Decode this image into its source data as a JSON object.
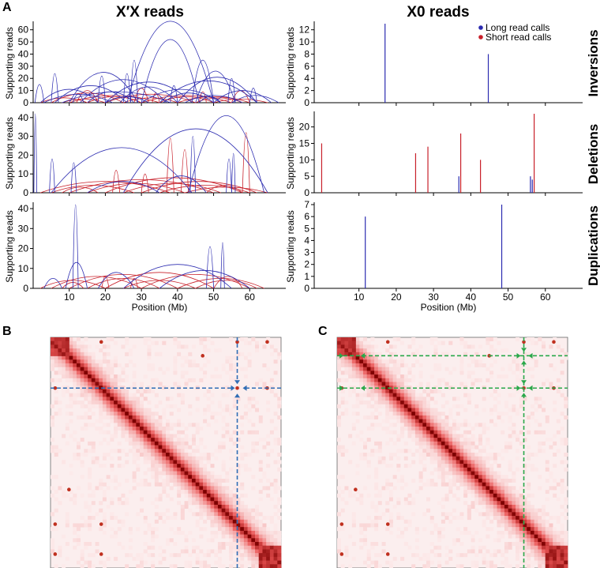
{
  "figure": {
    "panel_labels": {
      "a": "A",
      "b": "B",
      "c": "C"
    },
    "col_titles": {
      "left": "X′X reads",
      "right": "X0 reads"
    },
    "row_titles": {
      "inv": "Inversions",
      "del": "Deletions",
      "dup": "Duplications"
    },
    "ylabel": "Supporting reads",
    "xlabel": "Position (Mb)",
    "legend": [
      {
        "label": "Long read calls",
        "color": "#2b2bb0"
      },
      {
        "label": "Short read calls",
        "color": "#c8202a"
      }
    ]
  },
  "chart_data": [
    {
      "id": "xx_inv",
      "type": "arc",
      "panel": "X′X reads",
      "row": "Inversions",
      "xlim": [
        0,
        70
      ],
      "ylim": [
        0,
        65
      ],
      "yticks": [
        0,
        10,
        20,
        30,
        40,
        50,
        60
      ],
      "xticks": [
        10,
        20,
        30,
        40,
        50,
        60
      ],
      "show_xticklabels": false,
      "series": [
        {
          "name": "Long read calls",
          "arcs": [
            [
              26,
              50,
              67
            ],
            [
              30,
              46,
              52
            ],
            [
              10,
              29,
              25
            ],
            [
              44,
              50,
              35
            ],
            [
              0.5,
              3,
              15
            ],
            [
              13,
              37,
              19
            ],
            [
              35,
              62,
              18
            ],
            [
              6,
              26,
              14
            ],
            [
              20,
              44,
              17
            ],
            [
              40,
              62,
              21
            ],
            [
              45,
              56,
              26
            ],
            [
              2,
              18,
              11
            ],
            [
              24,
              40,
              13
            ],
            [
              50,
              66,
              10
            ],
            [
              15,
              28,
              9
            ],
            [
              30,
              52,
              11
            ],
            [
              8,
              38,
              9
            ],
            [
              36,
              50,
              8
            ],
            [
              55,
              68,
              6
            ],
            [
              3,
              22,
              7
            ],
            [
              20,
              32,
              5
            ],
            [
              42,
              58,
              6
            ],
            [
              11,
              14,
              7
            ],
            [
              46,
              52,
              5
            ],
            [
              25,
              27,
              24
            ],
            [
              18,
              20,
              22
            ],
            [
              5,
              7,
              24
            ],
            [
              54,
              56,
              20
            ],
            [
              60,
              62,
              12
            ],
            [
              27,
              29,
              35
            ],
            [
              38,
              40,
              14
            ]
          ]
        },
        {
          "name": "Short read calls",
          "arcs": [
            [
              5,
              25,
              8
            ],
            [
              10,
              35,
              6
            ],
            [
              20,
              45,
              7
            ],
            [
              30,
              55,
              6
            ],
            [
              40,
              60,
              5
            ],
            [
              2,
              15,
              4
            ],
            [
              15,
              30,
              5
            ],
            [
              25,
              40,
              4
            ],
            [
              35,
              50,
              5
            ],
            [
              45,
              58,
              4
            ],
            [
              8,
              20,
              3
            ],
            [
              50,
              65,
              3
            ],
            [
              28,
              32,
              12
            ],
            [
              12,
              18,
              10
            ],
            [
              55,
              60,
              10
            ],
            [
              33,
              35,
              8
            ],
            [
              46,
              48,
              9
            ]
          ]
        }
      ]
    },
    {
      "id": "xx_del",
      "type": "arc",
      "panel": "X′X reads",
      "row": "Deletions",
      "xlim": [
        0,
        70
      ],
      "ylim": [
        0,
        42
      ],
      "yticks": [
        0,
        10,
        20,
        30,
        40
      ],
      "xticks": [
        10,
        20,
        30,
        40,
        50,
        60
      ],
      "show_xticklabels": false,
      "series": [
        {
          "name": "Long read calls",
          "arcs": [
            [
              25,
              65,
              34
            ],
            [
              43,
              64,
              41
            ],
            [
              5,
              44,
              24
            ],
            [
              0.2,
              1,
              42
            ],
            [
              4.5,
              6,
              18
            ],
            [
              10.5,
              12,
              16
            ],
            [
              43.5,
              45,
              30
            ],
            [
              53.5,
              55,
              18
            ],
            [
              55,
              56,
              21
            ],
            [
              34,
              48,
              9
            ],
            [
              15,
              35,
              6
            ]
          ]
        },
        {
          "name": "Short read calls",
          "arcs": [
            [
              2,
              38,
              6
            ],
            [
              10,
              50,
              7
            ],
            [
              20,
              58,
              8
            ],
            [
              30,
              62,
              6
            ],
            [
              5,
              28,
              4
            ],
            [
              15,
              42,
              5
            ],
            [
              25,
              52,
              5
            ],
            [
              35,
              60,
              4
            ],
            [
              42,
              65,
              3
            ],
            [
              8,
              18,
              3
            ],
            [
              48,
              58,
              4
            ],
            [
              37,
              39,
              29
            ],
            [
              41,
              43,
              23
            ],
            [
              58,
              60,
              32
            ],
            [
              30,
              32,
              10
            ],
            [
              22,
              24,
              12
            ]
          ]
        }
      ]
    },
    {
      "id": "xx_dup",
      "type": "arc",
      "panel": "X′X reads",
      "row": "Duplications",
      "xlim": [
        0,
        70
      ],
      "ylim": [
        0,
        42
      ],
      "yticks": [
        0,
        10,
        20,
        30,
        40
      ],
      "xticks": [
        10,
        20,
        30,
        40,
        50,
        60
      ],
      "show_xticklabels": true,
      "series": [
        {
          "name": "Long read calls",
          "arcs": [
            [
              11,
              12.5,
              42
            ],
            [
              9,
              15,
              13
            ],
            [
              48,
              50,
              21
            ],
            [
              52,
              53,
              23
            ],
            [
              25,
              55,
              12
            ],
            [
              35,
              60,
              9
            ],
            [
              18,
              28,
              8
            ],
            [
              3,
              8,
              5
            ]
          ]
        },
        {
          "name": "Short read calls",
          "arcs": [
            [
              5,
              30,
              6
            ],
            [
              10,
              40,
              7
            ],
            [
              20,
              50,
              8
            ],
            [
              30,
              60,
              7
            ],
            [
              40,
              64,
              5
            ],
            [
              2,
              20,
              4
            ],
            [
              15,
              35,
              5
            ],
            [
              25,
              45,
              4
            ],
            [
              45,
              62,
              4
            ],
            [
              8,
              14,
              3
            ],
            [
              50,
              58,
              6
            ],
            [
              19,
              21,
              6
            ],
            [
              27,
              29,
              5
            ]
          ]
        }
      ]
    },
    {
      "id": "x0_inv",
      "type": "bar",
      "panel": "X0 reads",
      "row": "Inversions",
      "xlim": [
        -2,
        70
      ],
      "ylim": [
        0,
        13
      ],
      "yticks": [
        0,
        2,
        4,
        6,
        8,
        10,
        12
      ],
      "xticks": [
        10,
        20,
        30,
        40,
        50,
        60
      ],
      "show_xticklabels": false,
      "series": [
        {
          "name": "Long read calls",
          "x": [
            17,
            44.7
          ],
          "values": [
            13,
            8
          ]
        },
        {
          "name": "Short read calls",
          "x": [],
          "values": []
        }
      ]
    },
    {
      "id": "x0_del",
      "type": "bar",
      "panel": "X0 reads",
      "row": "Deletions",
      "xlim": [
        -2,
        70
      ],
      "ylim": [
        0,
        24
      ],
      "yticks": [
        0,
        5,
        10,
        15,
        20
      ],
      "xticks": [
        10,
        20,
        30,
        40,
        50,
        60
      ],
      "show_xticklabels": false,
      "series": [
        {
          "name": "Long read calls",
          "x": [
            36.8,
            56,
            56.5
          ],
          "values": [
            5,
            5,
            4
          ]
        },
        {
          "name": "Short read calls",
          "x": [
            0,
            25.2,
            28.5,
            37.3,
            42.6,
            57
          ],
          "values": [
            15,
            12,
            14,
            18,
            10,
            24
          ]
        }
      ]
    },
    {
      "id": "x0_dup",
      "type": "bar",
      "panel": "X0 reads",
      "row": "Duplications",
      "xlim": [
        -2,
        70
      ],
      "ylim": [
        0,
        7
      ],
      "yticks": [
        0,
        1,
        2,
        3,
        4,
        5,
        6,
        7
      ],
      "xticks": [
        10,
        20,
        30,
        40,
        50,
        60
      ],
      "show_xticklabels": true,
      "series": [
        {
          "name": "Long read calls",
          "x": [
            11.7,
            48.3
          ],
          "values": [
            6,
            7
          ]
        },
        {
          "name": "Short read calls",
          "x": [],
          "values": []
        }
      ]
    },
    {
      "id": "hic_b",
      "type": "heatmap",
      "panel": "B",
      "bins": 62,
      "colors": {
        "low": "#ffffff",
        "high": "#8b0000"
      },
      "arrow_color": "#2f6db5",
      "markers": [
        0.22,
        0.81
      ],
      "arrow_style": "single",
      "off_diagonal_spots": [
        [
          0.02,
          0.22
        ],
        [
          0.02,
          0.81
        ],
        [
          0.22,
          0.81
        ],
        [
          0.08,
          0.66
        ],
        [
          0.02,
          0.94
        ],
        [
          0.22,
          0.94
        ]
      ]
    },
    {
      "id": "hic_c",
      "type": "heatmap",
      "panel": "C",
      "bins": 62,
      "colors": {
        "low": "#ffffff",
        "high": "#8b0000"
      },
      "arrow_color": "#2aa84a",
      "markers": [
        0.08,
        0.22,
        0.81
      ],
      "arrow_style": "double",
      "off_diagonal_spots": [
        [
          0.02,
          0.22
        ],
        [
          0.02,
          0.81
        ],
        [
          0.22,
          0.81
        ],
        [
          0.08,
          0.66
        ],
        [
          0.02,
          0.94
        ],
        [
          0.22,
          0.94
        ]
      ]
    }
  ]
}
